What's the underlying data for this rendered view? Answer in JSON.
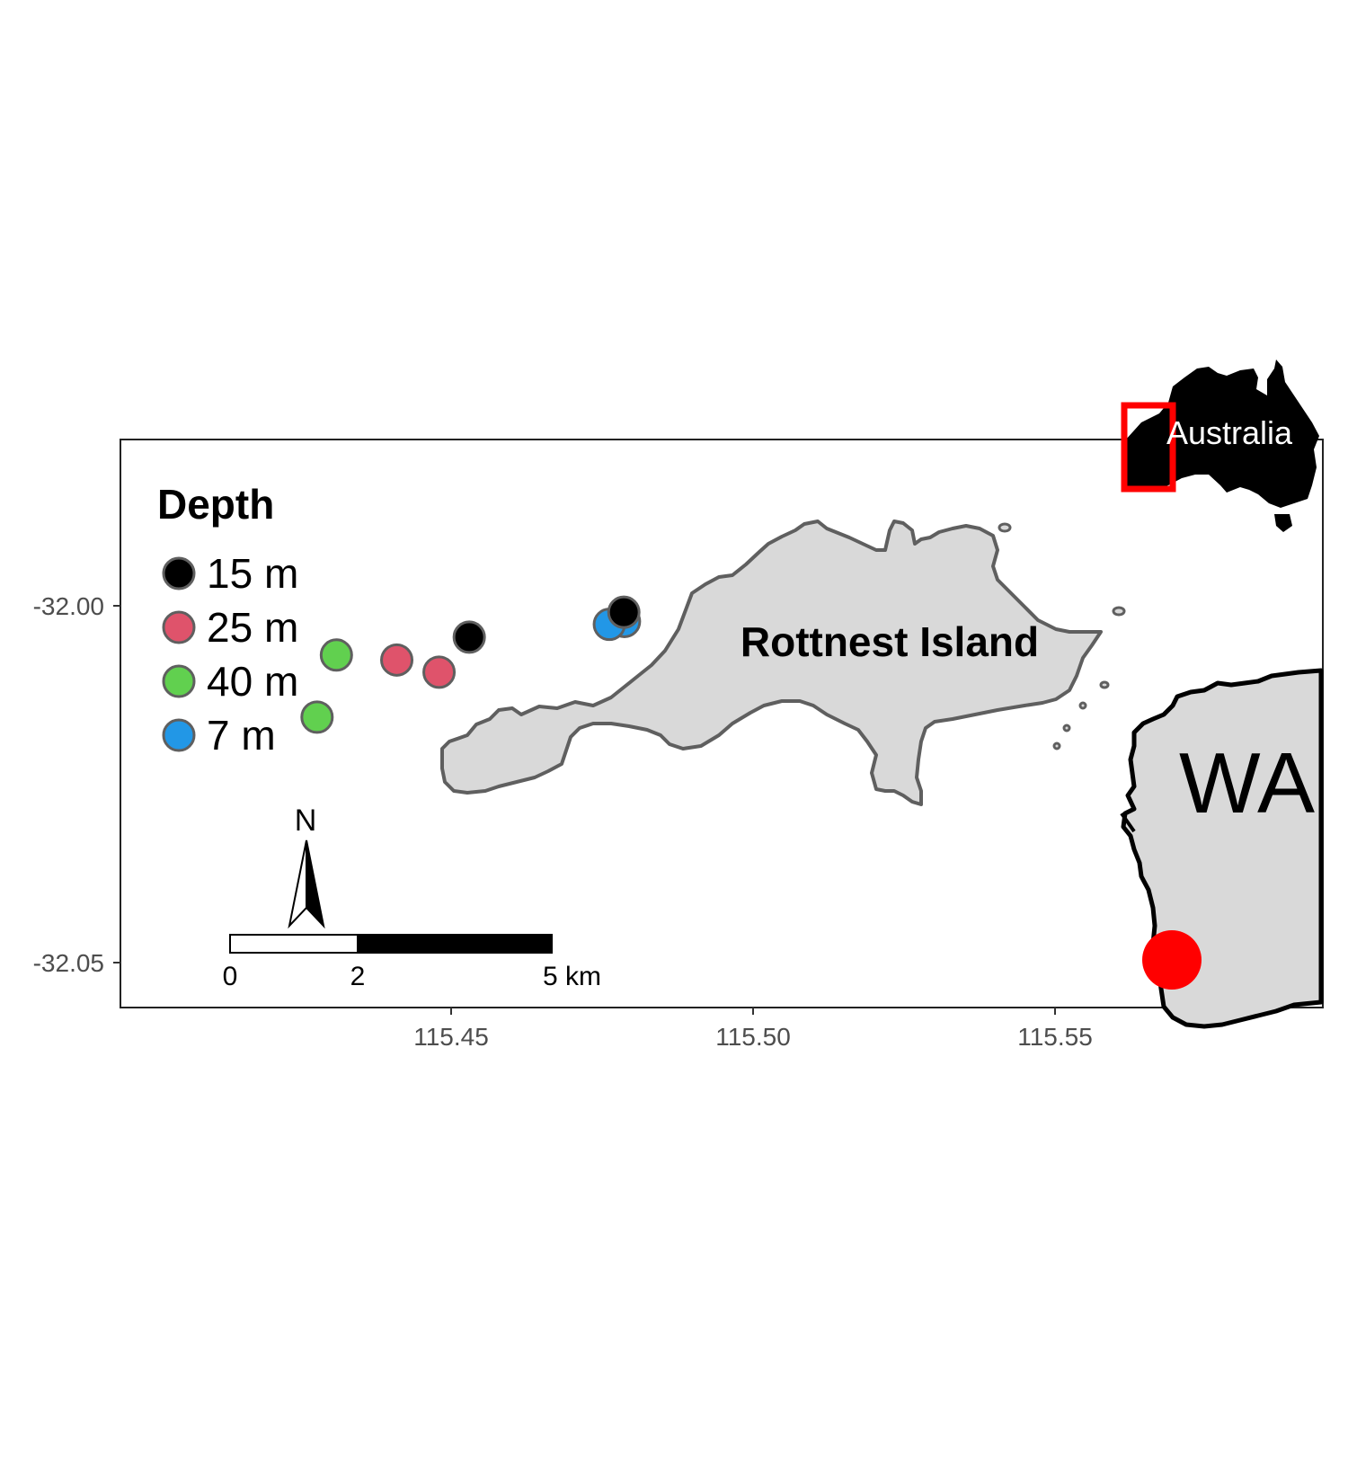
{
  "chart_data": {
    "type": "map",
    "x_axis": {
      "ticks": [
        115.45,
        115.5,
        115.55
      ],
      "tick_labels": [
        "115.45",
        "115.50",
        "115.55"
      ]
    },
    "y_axis": {
      "ticks": [
        -32.0,
        -32.05
      ],
      "tick_labels": [
        "-32.00",
        "-32.05"
      ]
    },
    "legend": {
      "title": "Depth",
      "placement": "top-left",
      "entries": [
        {
          "label": "15 m",
          "color": "#000000"
        },
        {
          "label": "25 m",
          "color": "#DF536B"
        },
        {
          "label": "40 m",
          "color": "#61D04F"
        },
        {
          "label": "7 m",
          "color": "#2297E6"
        }
      ]
    },
    "points": [
      {
        "lon": 115.431,
        "lat": -32.0069,
        "depth": "40 m"
      },
      {
        "lon": 115.4278,
        "lat": -32.0156,
        "depth": "40 m"
      },
      {
        "lon": 115.441,
        "lat": -32.0076,
        "depth": "25 m"
      },
      {
        "lon": 115.448,
        "lat": -32.0093,
        "depth": "25 m"
      },
      {
        "lon": 115.453,
        "lat": -32.0044,
        "depth": "15 m"
      },
      {
        "lon": 115.4787,
        "lat": -32.0022,
        "depth": "7 m"
      },
      {
        "lon": 115.4762,
        "lat": -32.0026,
        "depth": "7 m"
      },
      {
        "lon": 115.4786,
        "lat": -32.0009,
        "depth": "15 m"
      }
    ],
    "island_label": "Rottnest Island",
    "north_arrow_label": "N",
    "scale_bar": {
      "labels": [
        "0",
        "2",
        "5 km"
      ]
    },
    "insets": {
      "australia_label": "Australia",
      "state_label": "WA"
    },
    "colors": {
      "land": "#D9D9D9",
      "coast": "#5F5F5F",
      "highlight": "#FF0000",
      "australia": "#000000"
    }
  }
}
